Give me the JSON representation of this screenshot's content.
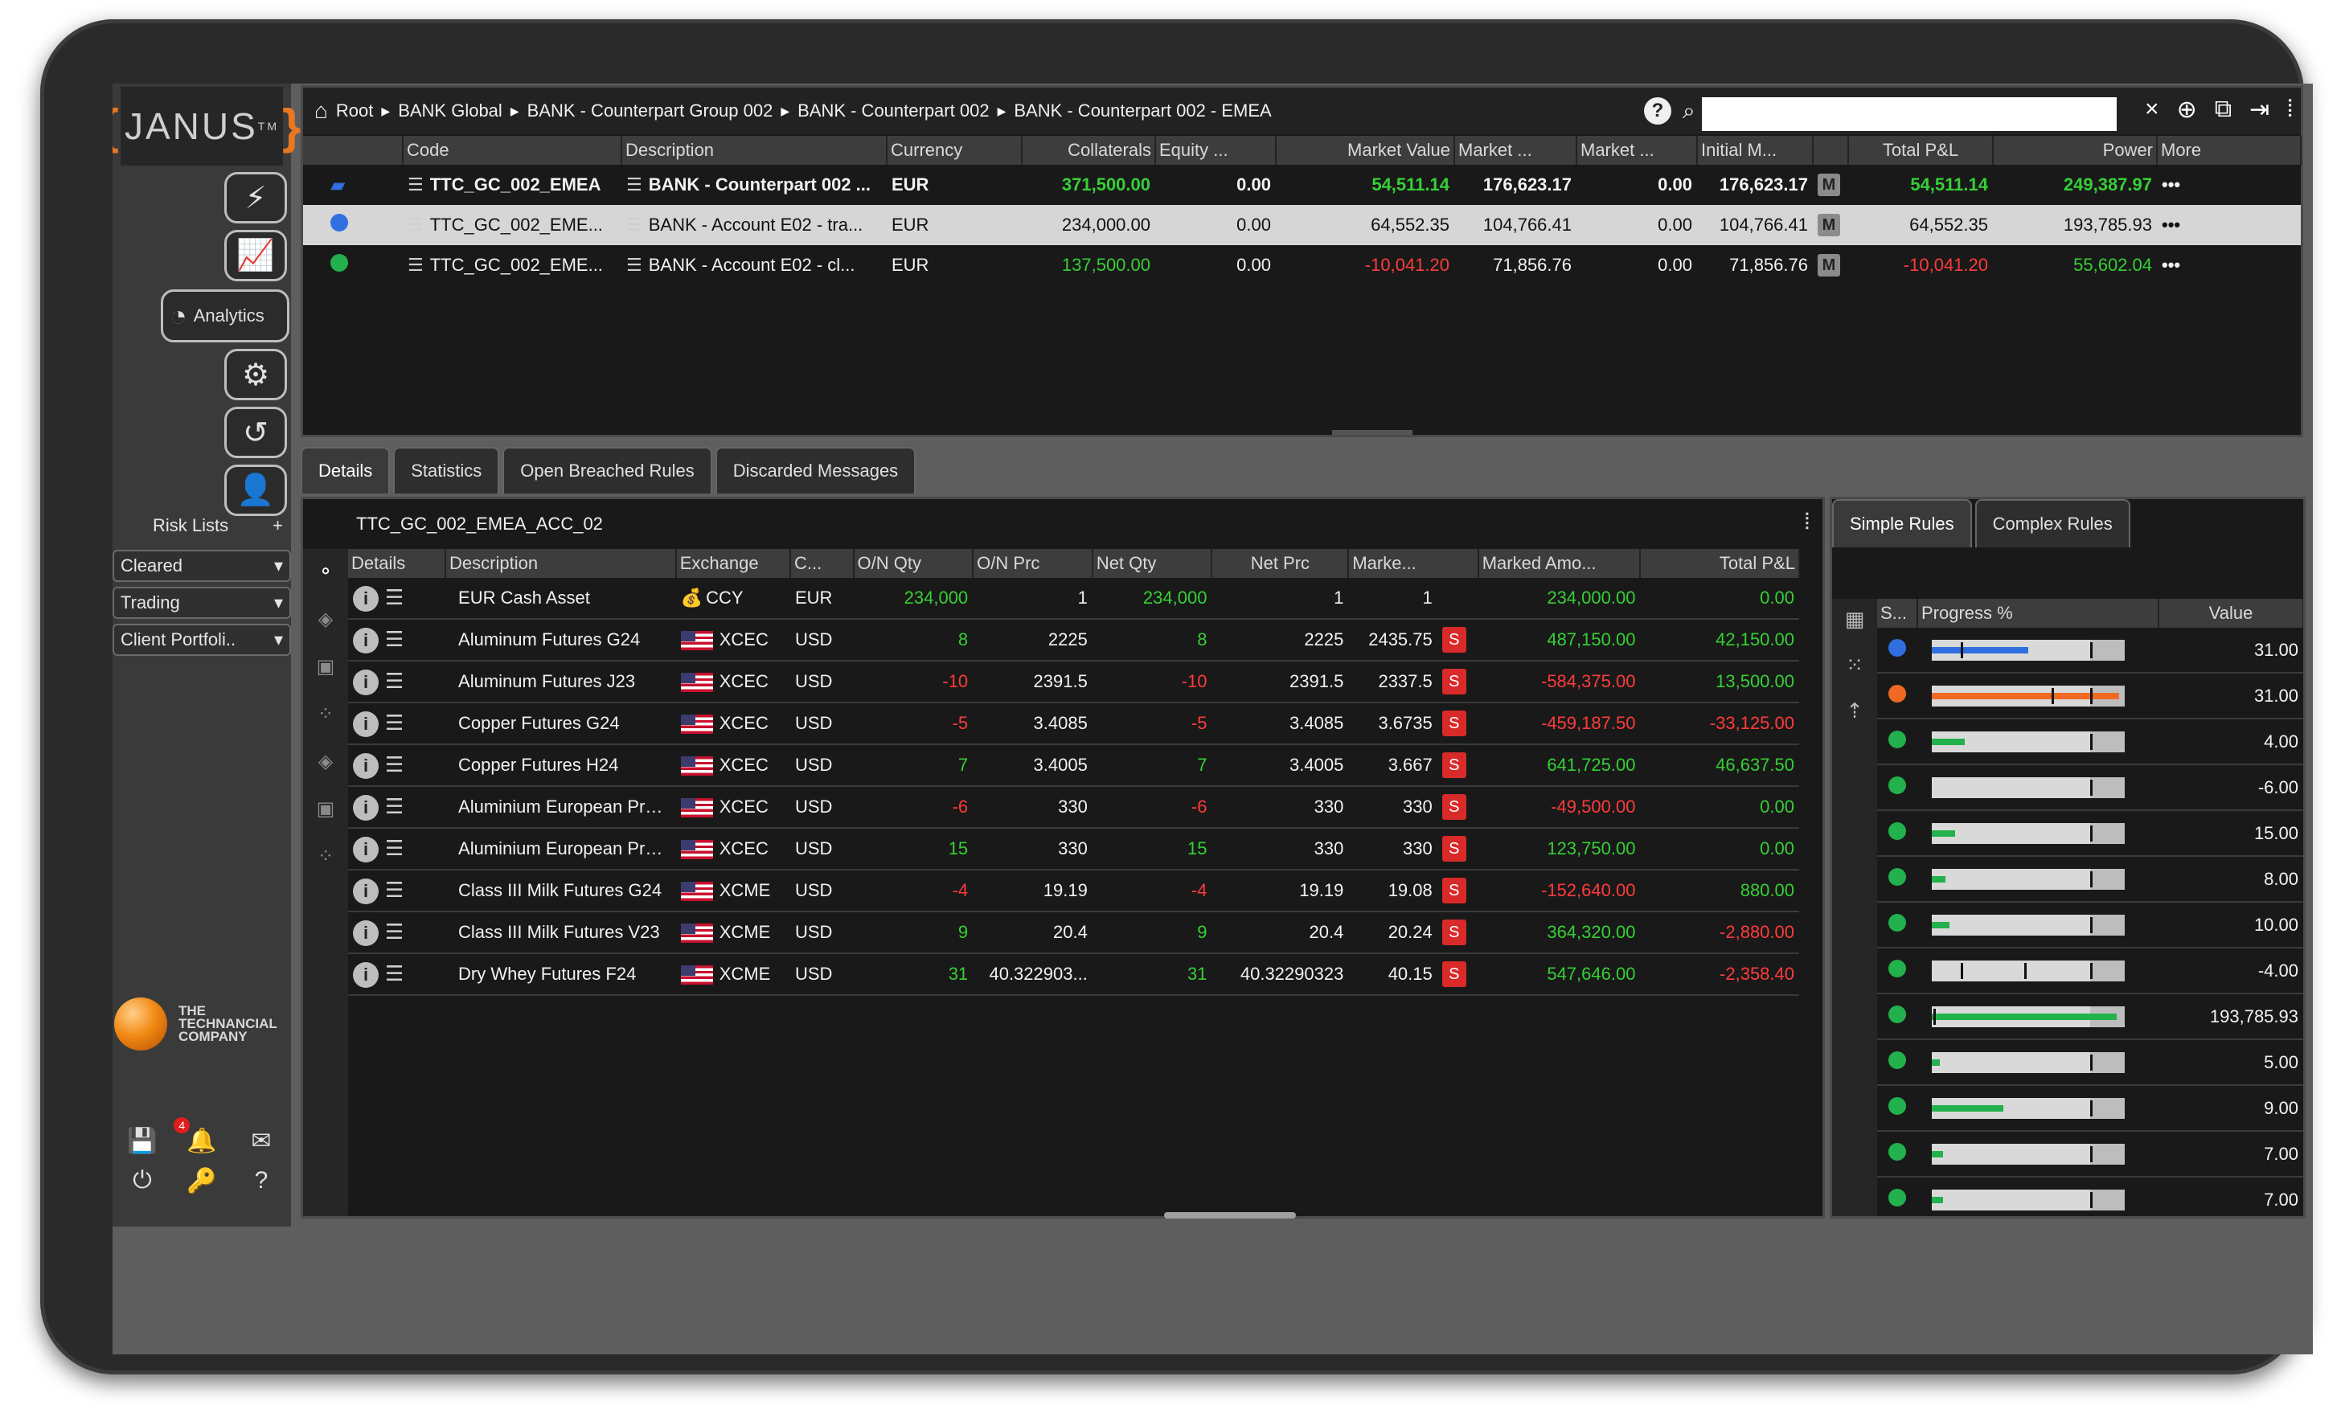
{
  "app": {
    "logo_text": "JANUS",
    "logo_tm": "TM",
    "company": [
      "THE",
      "TECHNANCIAL",
      "COMPANY"
    ]
  },
  "sidebar": {
    "analytics_label": "Analytics",
    "risk_lists_label": "Risk Lists",
    "risk_lists_add": "+",
    "lists": [
      "Cleared",
      "Trading",
      "Client Portfoli.."
    ],
    "notifications_count": "4"
  },
  "breadcrumb": [
    "Root",
    "BANK Global",
    "BANK - Counterpart Group 002",
    "BANK - Counterpart 002",
    "BANK - Counterpart 002 - EMEA"
  ],
  "search": {
    "value": "",
    "clear": "×"
  },
  "top_table": {
    "headers": [
      "",
      "Code",
      "Description",
      "Currency",
      "Collaterals",
      "Equity ...",
      "Market Value",
      "Market ...",
      "Market ...",
      "Initial M...",
      "",
      "Total P&L",
      "Power",
      "More"
    ],
    "rows": [
      {
        "status": "folder",
        "code": "TTC_GC_002_EMEA",
        "description": "BANK - Counterpart 002 ...",
        "currency": "EUR",
        "collaterals": "371,500.00",
        "equity": "0.00",
        "market_value": "54,511.14",
        "market2": "176,623.17",
        "market3": "0.00",
        "initial_m": "176,623.17",
        "badge": "M",
        "total_pl": "54,511.14",
        "power": "249,387.97",
        "more": "•••",
        "colors": {
          "collaterals": "green",
          "market_value": "green",
          "total_pl": "green",
          "power": "green"
        },
        "bold": true
      },
      {
        "status": "blue",
        "code": "TTC_GC_002_EME...",
        "description": "BANK - Account E02 - tra...",
        "currency": "EUR",
        "collaterals": "234,000.00",
        "equity": "0.00",
        "market_value": "64,552.35",
        "market2": "104,766.41",
        "market3": "0.00",
        "initial_m": "104,766.41",
        "badge": "M",
        "total_pl": "64,552.35",
        "power": "193,785.93",
        "more": "•••",
        "colors": {},
        "selected": true
      },
      {
        "status": "green",
        "code": "TTC_GC_002_EME...",
        "description": "BANK - Account E02 - cl...",
        "currency": "EUR",
        "collaterals": "137,500.00",
        "equity": "0.00",
        "market_value": "-10,041.20",
        "market2": "71,856.76",
        "market3": "0.00",
        "initial_m": "71,856.76",
        "badge": "M",
        "total_pl": "-10,041.20",
        "power": "55,602.04",
        "more": "•••",
        "colors": {
          "collaterals": "green",
          "market_value": "red",
          "total_pl": "red",
          "power": "green"
        }
      }
    ]
  },
  "tabs": [
    "Details",
    "Statistics",
    "Open Breached Rules",
    "Discarded Messages"
  ],
  "details": {
    "title": "TTC_GC_002_EMEA_ACC_02",
    "headers": [
      "Details",
      "Description",
      "Exchange",
      "C...",
      "O/N Qty",
      "O/N Prc",
      "Net Qty",
      "Net Prc",
      "Marke...",
      "Marked Amo...",
      "Total P&L"
    ],
    "rows": [
      {
        "description": "EUR Cash Asset",
        "exchange": "CCY",
        "flag": "cash",
        "currency": "EUR",
        "on_qty": "234,000",
        "on_prc": "1",
        "net_qty": "234,000",
        "net_prc": "1",
        "market": "1",
        "badge": "",
        "marked_amount": "234,000.00",
        "total_pl": "0.00",
        "c": {
          "on_qty": "green",
          "net_qty": "green",
          "marked_amount": "green",
          "total_pl": "green"
        }
      },
      {
        "description": "Aluminum Futures G24",
        "exchange": "XCEC",
        "flag": "us",
        "currency": "USD",
        "on_qty": "8",
        "on_prc": "2225",
        "net_qty": "8",
        "net_prc": "2225",
        "market": "2435.75",
        "badge": "S",
        "marked_amount": "487,150.00",
        "total_pl": "42,150.00",
        "c": {
          "on_qty": "green",
          "net_qty": "green",
          "marked_amount": "green",
          "total_pl": "green"
        }
      },
      {
        "description": "Aluminum Futures J23",
        "exchange": "XCEC",
        "flag": "us",
        "currency": "USD",
        "on_qty": "-10",
        "on_prc": "2391.5",
        "net_qty": "-10",
        "net_prc": "2391.5",
        "market": "2337.5",
        "badge": "S",
        "marked_amount": "-584,375.00",
        "total_pl": "13,500.00",
        "c": {
          "on_qty": "red",
          "net_qty": "red",
          "marked_amount": "red",
          "total_pl": "green"
        }
      },
      {
        "description": "Copper Futures G24",
        "exchange": "XCEC",
        "flag": "us",
        "currency": "USD",
        "on_qty": "-5",
        "on_prc": "3.4085",
        "net_qty": "-5",
        "net_prc": "3.4085",
        "market": "3.6735",
        "badge": "S",
        "marked_amount": "-459,187.50",
        "total_pl": "-33,125.00",
        "c": {
          "on_qty": "red",
          "net_qty": "red",
          "marked_amount": "red",
          "total_pl": "red"
        }
      },
      {
        "description": "Copper Futures H24",
        "exchange": "XCEC",
        "flag": "us",
        "currency": "USD",
        "on_qty": "7",
        "on_prc": "3.4005",
        "net_qty": "7",
        "net_prc": "3.4005",
        "market": "3.667",
        "badge": "S",
        "marked_amount": "641,725.00",
        "total_pl": "46,637.50",
        "c": {
          "on_qty": "green",
          "net_qty": "green",
          "marked_amount": "green",
          "total_pl": "green"
        }
      },
      {
        "description": "Aluminium European Premiu...",
        "exchange": "XCEC",
        "flag": "us",
        "currency": "USD",
        "on_qty": "-6",
        "on_prc": "330",
        "net_qty": "-6",
        "net_prc": "330",
        "market": "330",
        "badge": "S",
        "marked_amount": "-49,500.00",
        "total_pl": "0.00",
        "c": {
          "on_qty": "red",
          "net_qty": "red",
          "marked_amount": "red",
          "total_pl": "green"
        }
      },
      {
        "description": "Aluminium European Premiu...",
        "exchange": "XCEC",
        "flag": "us",
        "currency": "USD",
        "on_qty": "15",
        "on_prc": "330",
        "net_qty": "15",
        "net_prc": "330",
        "market": "330",
        "badge": "S",
        "marked_amount": "123,750.00",
        "total_pl": "0.00",
        "c": {
          "on_qty": "green",
          "net_qty": "green",
          "marked_amount": "green",
          "total_pl": "green"
        }
      },
      {
        "description": "Class III Milk Futures G24",
        "exchange": "XCME",
        "flag": "us",
        "currency": "USD",
        "on_qty": "-4",
        "on_prc": "19.19",
        "net_qty": "-4",
        "net_prc": "19.19",
        "market": "19.08",
        "badge": "S",
        "marked_amount": "-152,640.00",
        "total_pl": "880.00",
        "c": {
          "on_qty": "red",
          "net_qty": "red",
          "marked_amount": "red",
          "total_pl": "green"
        }
      },
      {
        "description": "Class III Milk Futures V23",
        "exchange": "XCME",
        "flag": "us",
        "currency": "USD",
        "on_qty": "9",
        "on_prc": "20.4",
        "net_qty": "9",
        "net_prc": "20.4",
        "market": "20.24",
        "badge": "S",
        "marked_amount": "364,320.00",
        "total_pl": "-2,880.00",
        "c": {
          "on_qty": "green",
          "net_qty": "green",
          "marked_amount": "green",
          "total_pl": "red"
        }
      },
      {
        "description": "Dry Whey Futures F24",
        "exchange": "XCME",
        "flag": "us",
        "currency": "USD",
        "on_qty": "31",
        "on_prc": "40.322903...",
        "net_qty": "31",
        "net_prc": "40.32290323",
        "market": "40.15",
        "badge": "S",
        "marked_amount": "547,646.00",
        "total_pl": "-2,358.40",
        "c": {
          "on_qty": "green",
          "net_qty": "green",
          "marked_amount": "green",
          "total_pl": "red"
        }
      }
    ]
  },
  "rules": {
    "tabs": [
      "Simple Rules",
      "Complex Rules"
    ],
    "headers": [
      "S...",
      "Progress %",
      "Value"
    ],
    "rows": [
      {
        "status": "#2f6fe0",
        "bar_color": "#2f6fe0",
        "progress": 0.5,
        "markers": [
          0.15,
          0.82
        ],
        "value": "31.00"
      },
      {
        "status": "#f06a24",
        "bar_color": "#f06a24",
        "progress": 0.97,
        "markers": [
          0.62,
          0.82
        ],
        "value": "31.00"
      },
      {
        "status": "#22b14c",
        "bar_color": "#22b14c",
        "progress": 0.17,
        "markers": [
          0.82
        ],
        "value": "4.00"
      },
      {
        "status": "#22b14c",
        "bar_color": "#22b14c",
        "progress": 0,
        "markers": [
          0.82
        ],
        "value": "-6.00"
      },
      {
        "status": "#22b14c",
        "bar_color": "#22b14c",
        "progress": 0.12,
        "markers": [
          0.82
        ],
        "value": "15.00"
      },
      {
        "status": "#22b14c",
        "bar_color": "#22b14c",
        "progress": 0.07,
        "markers": [
          0.82
        ],
        "value": "8.00"
      },
      {
        "status": "#22b14c",
        "bar_color": "#22b14c",
        "progress": 0.09,
        "markers": [
          0.82
        ],
        "value": "10.00"
      },
      {
        "status": "#22b14c",
        "bar_color": "#22b14c",
        "progress": 0,
        "markers": [
          0.15,
          0.48,
          0.82
        ],
        "value": "-4.00"
      },
      {
        "status": "#22b14c",
        "bar_color": "#22b14c",
        "progress": 0.96,
        "markers": [
          0.01
        ],
        "value": "193,785.93"
      },
      {
        "status": "#22b14c",
        "bar_color": "#22b14c",
        "progress": 0.04,
        "markers": [
          0.82
        ],
        "value": "5.00"
      },
      {
        "status": "#22b14c",
        "bar_color": "#22b14c",
        "progress": 0.37,
        "markers": [
          0.82
        ],
        "value": "9.00"
      },
      {
        "status": "#22b14c",
        "bar_color": "#22b14c",
        "progress": 0.06,
        "markers": [
          0.82
        ],
        "value": "7.00"
      },
      {
        "status": "#22b14c",
        "bar_color": "#22b14c",
        "progress": 0.06,
        "markers": [
          0.82
        ],
        "value": "7.00"
      }
    ]
  },
  "colors": {
    "green": "#35d035",
    "red": "#ff3b3b",
    "accent": "#e87722"
  }
}
